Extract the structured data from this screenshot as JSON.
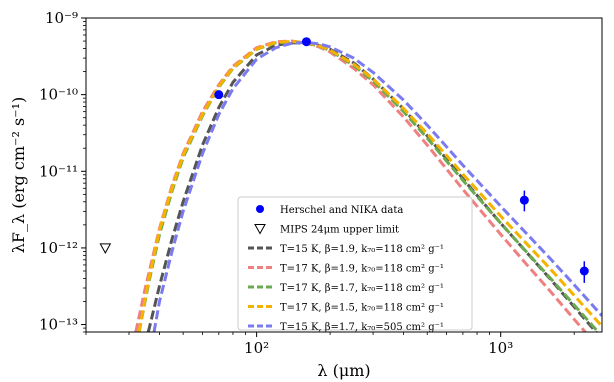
{
  "chart_data": {
    "type": "scatter",
    "x_axis": {
      "scale": "log",
      "range": [
        20,
        2600
      ],
      "label": "λ (μm)",
      "tick_labels": [
        "10²",
        "10³"
      ],
      "tick_values": [
        100,
        1000
      ]
    },
    "y_axis": {
      "scale": "log",
      "range": [
        8e-14,
        1e-09
      ],
      "label": "λF_λ (erg cm⁻² s⁻¹)",
      "tick_labels": [
        "10⁻⁹",
        "10⁻¹⁰",
        "10⁻¹¹",
        "10⁻¹²",
        "10⁻¹³"
      ],
      "tick_values": [
        1e-09,
        1e-10,
        1e-11,
        1e-12,
        1e-13
      ]
    },
    "grid": false,
    "legend_position": "lower-center",
    "data_points": {
      "name": "Herschel and NIKA data",
      "color": "#0000ff",
      "points": [
        {
          "x": 70,
          "y": 1e-10,
          "err_low": 0,
          "err_high": 0
        },
        {
          "x": 160,
          "y": 4.9e-10,
          "err_low": 0,
          "err_high": 0
        },
        {
          "x": 1250,
          "y": 4.2e-12,
          "err_low": 1.2e-12,
          "err_high": 1.4e-12
        },
        {
          "x": 2200,
          "y": 5e-13,
          "err_low": 1.5e-13,
          "err_high": 1.7e-13
        }
      ]
    },
    "upper_limit": {
      "name": "MIPS 24μm upper limit",
      "color": "#000000",
      "x": 24,
      "y": 1e-12
    },
    "models": [
      {
        "name": "T=15 K, β=1.9, k₇₀=118 cm² g⁻¹",
        "color": "#555555",
        "x": [
          36,
          40,
          45,
          50,
          60,
          70,
          80,
          100,
          120,
          140,
          160,
          180,
          200,
          250,
          300,
          400,
          500,
          700,
          1000,
          1300,
          1600,
          2000,
          2600
        ],
        "y": [
          8e-14,
          3.2e-13,
          1.3e-12,
          4e-12,
          2.2e-11,
          6.8e-11,
          1.45e-10,
          3.3e-10,
          4.4e-10,
          4.75e-10,
          4.7e-10,
          4.4e-10,
          3.9e-10,
          2.6e-10,
          1.6e-10,
          6.5e-11,
          2.9e-11,
          8e-12,
          2.1e-12,
          8.2e-13,
          3.9e-13,
          1.7e-13,
          6.5e-14
        ]
      },
      {
        "name": "T=17 K, β=1.9, k₇₀=118 cm² g⁻¹",
        "color": "#f08080",
        "x": [
          32,
          35,
          40,
          45,
          50,
          60,
          70,
          80,
          100,
          120,
          140,
          160,
          180,
          200,
          250,
          300,
          400,
          500,
          700,
          1000,
          1300,
          1600,
          2000,
          2600
        ],
        "y": [
          8e-14,
          3e-13,
          1.8e-12,
          6.5e-12,
          1.7e-11,
          6e-11,
          1.35e-10,
          2.35e-10,
          4.1e-10,
          4.9e-10,
          5e-10,
          4.7e-10,
          4.2e-10,
          3.6e-10,
          2.2e-10,
          1.35e-10,
          5.1e-11,
          2.2e-11,
          5.8e-12,
          1.5e-12,
          5.7e-13,
          2.7e-13,
          1.17e-13,
          4.5e-14
        ]
      },
      {
        "name": "T=17 K, β=1.7, k₇₀=118 cm² g⁻¹",
        "color": "#6aaa50",
        "x": [
          33,
          36,
          40,
          45,
          50,
          60,
          70,
          80,
          100,
          120,
          140,
          160,
          180,
          200,
          250,
          300,
          400,
          500,
          700,
          1000,
          1300,
          1600,
          2000,
          2600
        ],
        "y": [
          8e-14,
          3.3e-13,
          1.5e-12,
          5.5e-12,
          1.5e-11,
          5.3e-11,
          1.25e-10,
          2.2e-10,
          3.9e-10,
          4.75e-10,
          4.9e-10,
          4.7e-10,
          4.3e-10,
          3.75e-10,
          2.4e-10,
          1.5e-10,
          6e-11,
          2.7e-11,
          7.6e-12,
          2.1e-12,
          8.3e-13,
          4e-13,
          1.8e-13,
          7e-14
        ]
      },
      {
        "name": "T=17 K, β=1.5, k₇₀=118 cm² g⁻¹",
        "color": "#f5b300",
        "x": [
          33,
          36,
          40,
          45,
          50,
          60,
          70,
          80,
          100,
          120,
          140,
          160,
          180,
          200,
          250,
          300,
          400,
          500,
          700,
          1000,
          1300,
          1600,
          2000,
          2600
        ],
        "y": [
          8e-14,
          3.6e-13,
          1.7e-12,
          6e-12,
          1.6e-11,
          5.5e-11,
          1.28e-10,
          2.25e-10,
          3.95e-10,
          4.8e-10,
          4.95e-10,
          4.75e-10,
          4.35e-10,
          3.8e-10,
          2.5e-10,
          1.6e-10,
          6.6e-11,
          3.1e-11,
          9.2e-12,
          2.6e-12,
          1.07e-12,
          5.3e-13,
          2.4e-13,
          9.5e-14
        ]
      },
      {
        "name": "T=15 K, β=1.7, k₇₀=505 cm² g⁻¹",
        "color": "#7b7bf0",
        "x": [
          38,
          40,
          45,
          50,
          60,
          70,
          80,
          100,
          120,
          140,
          160,
          180,
          200,
          250,
          300,
          400,
          500,
          700,
          1000,
          1300,
          1600,
          2000,
          2600
        ],
        "y": [
          8e-14,
          2e-13,
          9e-13,
          3e-12,
          1.7e-11,
          5.5e-11,
          1.2e-10,
          2.9e-10,
          4.1e-10,
          4.7e-10,
          4.8e-10,
          4.6e-10,
          4.2e-10,
          3e-10,
          1.95e-10,
          8.5e-11,
          4e-11,
          1.2e-11,
          3.5e-12,
          1.45e-12,
          7.2e-13,
          3.3e-13,
          1.3e-13
        ]
      }
    ]
  }
}
